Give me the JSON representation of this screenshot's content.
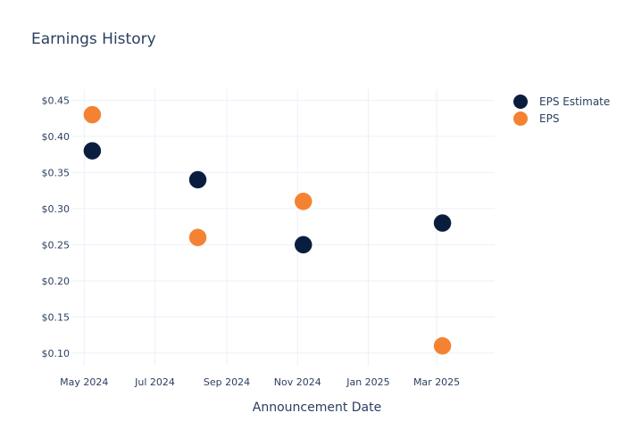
{
  "chart_data": {
    "type": "scatter",
    "title": "Earnings History",
    "xlabel": "Announcement Date",
    "ylabel": "",
    "x_ticks": [
      "2024-05-01",
      "2024-07-01",
      "2024-09-01",
      "2024-11-01",
      "2025-01-01",
      "2025-03-01"
    ],
    "x_tick_labels": [
      "May 2024",
      "Jul 2024",
      "Sep 2024",
      "Nov 2024",
      "Jan 2025",
      "Mar 2025"
    ],
    "xlim": [
      "2024-04-20",
      "2025-04-20"
    ],
    "y_ticks": [
      0.1,
      0.15,
      0.2,
      0.25,
      0.3,
      0.35,
      0.4,
      0.45
    ],
    "y_tick_labels": [
      "$0.10",
      "$0.15",
      "$0.20",
      "$0.25",
      "$0.30",
      "$0.35",
      "$0.40",
      "$0.45"
    ],
    "ylim": [
      0.0825,
      0.4653
    ],
    "grid": true,
    "legend_position": "top-right outside",
    "series": [
      {
        "name": "EPS Estimate",
        "color": "#0b1d3f",
        "points": [
          {
            "x": "2024-05-08",
            "y": 0.38
          },
          {
            "x": "2024-08-07",
            "y": 0.34
          },
          {
            "x": "2024-11-06",
            "y": 0.25
          },
          {
            "x": "2025-03-06",
            "y": 0.28
          }
        ]
      },
      {
        "name": "EPS",
        "color": "#f58232",
        "points": [
          {
            "x": "2024-05-08",
            "y": 0.43
          },
          {
            "x": "2024-08-07",
            "y": 0.26
          },
          {
            "x": "2024-11-06",
            "y": 0.31
          },
          {
            "x": "2025-03-06",
            "y": 0.11
          }
        ]
      }
    ]
  }
}
